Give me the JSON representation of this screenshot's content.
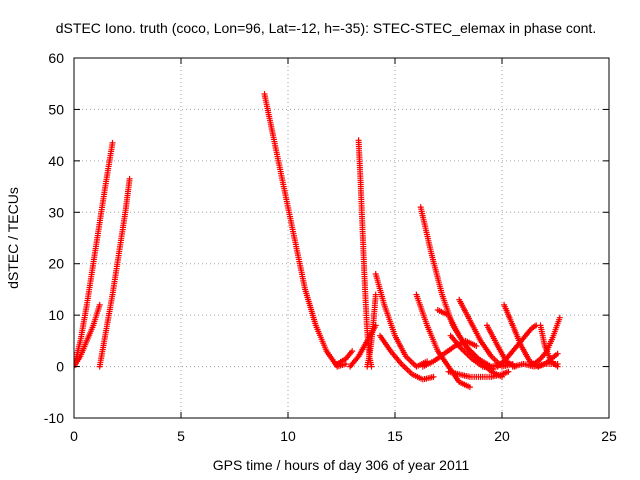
{
  "chart_data": {
    "type": "scatter",
    "title": "dSTEC Iono. truth (coco, Lon=96, Lat=-12, h=-35): STEC-STEC_elemax in phase cont.",
    "xlabel": "GPS time / hours of day 306 of year 2011",
    "ylabel": "dSTEC  / TECUs",
    "xlim": [
      0,
      25
    ],
    "ylim": [
      -10,
      60
    ],
    "x_ticks": [
      0,
      5,
      10,
      15,
      20,
      25
    ],
    "y_ticks": [
      -10,
      0,
      10,
      20,
      30,
      40,
      50,
      60
    ],
    "x_tick_labels": [
      "0",
      "5",
      "10",
      "15",
      "20",
      "25"
    ],
    "y_tick_labels": [
      "-10",
      "0",
      "10",
      "20",
      "30",
      "40",
      "50",
      "60"
    ],
    "grid": true,
    "marker": "plus",
    "color": "#ff0000",
    "series": [
      {
        "x": [
          0.0,
          0.3,
          0.6,
          0.9,
          1.2,
          1.5,
          1.8
        ],
        "y": [
          0,
          5,
          12,
          20,
          28,
          36,
          43.5
        ]
      },
      {
        "x": [
          0.0,
          0.3,
          0.6,
          0.9,
          1.2
        ],
        "y": [
          0,
          2,
          5,
          8,
          12
        ]
      },
      {
        "x": [
          1.2,
          1.5,
          1.8,
          2.1,
          2.4,
          2.6
        ],
        "y": [
          0,
          7,
          14,
          22,
          30,
          36.5
        ]
      },
      {
        "x": [
          8.9,
          9.3,
          9.8,
          10.3,
          10.8,
          11.3,
          11.8,
          12.3,
          12.7
        ],
        "y": [
          53,
          45,
          35,
          25,
          15,
          8,
          3,
          0,
          0.5
        ]
      },
      {
        "x": [
          12.3,
          12.7,
          13.0
        ],
        "y": [
          0.5,
          1.5,
          3
        ]
      },
      {
        "x": [
          13.3,
          13.4,
          13.5,
          13.6,
          13.7,
          13.8,
          13.9
        ],
        "y": [
          44,
          35,
          25,
          15,
          7,
          2,
          0
        ]
      },
      {
        "x": [
          12.9,
          13.3,
          13.7,
          14.1
        ],
        "y": [
          0,
          2,
          5,
          8
        ]
      },
      {
        "x": [
          13.7,
          13.8,
          13.9,
          14.0,
          14.1
        ],
        "y": [
          0,
          2,
          5,
          9,
          14
        ]
      },
      {
        "x": [
          14.1,
          14.5,
          15.0,
          15.5,
          16.0,
          16.5
        ],
        "y": [
          18,
          12,
          6,
          2,
          0,
          1
        ]
      },
      {
        "x": [
          14.3,
          14.8,
          15.3,
          15.8,
          16.3,
          16.8
        ],
        "y": [
          6,
          3,
          0.5,
          -1.5,
          -2.5,
          -2
        ]
      },
      {
        "x": [
          16.2,
          16.7,
          17.2,
          17.7,
          18.3,
          18.9,
          19.5,
          20.0
        ],
        "y": [
          31,
          22,
          14,
          8,
          4,
          1.5,
          0,
          0.5
        ]
      },
      {
        "x": [
          16.0,
          16.5,
          17.0,
          17.5,
          18.0,
          18.5
        ],
        "y": [
          14,
          8,
          3,
          0,
          -3,
          -4
        ]
      },
      {
        "x": [
          17.0,
          17.5,
          18.0,
          18.5,
          19.0,
          19.5,
          20.0
        ],
        "y": [
          11,
          10,
          6,
          3,
          1,
          -1,
          -2
        ]
      },
      {
        "x": [
          16.3,
          16.8,
          17.3,
          17.8,
          18.3,
          18.8
        ],
        "y": [
          0,
          1,
          2.5,
          4,
          5,
          4
        ]
      },
      {
        "x": [
          18.0,
          18.5,
          19.0,
          19.5,
          20.0,
          20.5
        ],
        "y": [
          13,
          9,
          5,
          2,
          0,
          0.5
        ]
      },
      {
        "x": [
          17.5,
          18.0,
          18.5,
          19.0,
          19.5,
          20.0,
          20.3
        ],
        "y": [
          -1,
          -1.5,
          -2,
          -2,
          -2,
          -1.5,
          -1
        ]
      },
      {
        "x": [
          17.6,
          18.1,
          18.6,
          19.1,
          19.6
        ],
        "y": [
          6,
          3.5,
          1.5,
          0,
          -0.5
        ]
      },
      {
        "x": [
          19.3,
          19.8,
          20.2,
          20.6
        ],
        "y": [
          8,
          4,
          1,
          0
        ]
      },
      {
        "x": [
          20.1,
          20.5,
          20.9,
          21.3,
          21.7
        ],
        "y": [
          12,
          8,
          4,
          1,
          0
        ]
      },
      {
        "x": [
          19.8,
          20.2,
          20.6,
          21.0,
          21.4,
          21.6
        ],
        "y": [
          0,
          1.5,
          3.5,
          5.5,
          7.5,
          8
        ]
      },
      {
        "x": [
          20.5,
          21.0,
          21.5,
          22.0,
          22.6
        ],
        "y": [
          0,
          0.5,
          0,
          0.5,
          0.5
        ]
      },
      {
        "x": [
          21.8,
          22.0,
          22.3,
          22.6
        ],
        "y": [
          8,
          4,
          1,
          0
        ]
      },
      {
        "x": [
          21.5,
          21.8,
          22.1,
          22.4,
          22.7
        ],
        "y": [
          0.5,
          1.5,
          3,
          6,
          9.5
        ]
      },
      {
        "x": [
          21.7,
          22.0,
          22.3,
          22.6
        ],
        "y": [
          0,
          0.5,
          1.5,
          2.5
        ]
      }
    ]
  }
}
